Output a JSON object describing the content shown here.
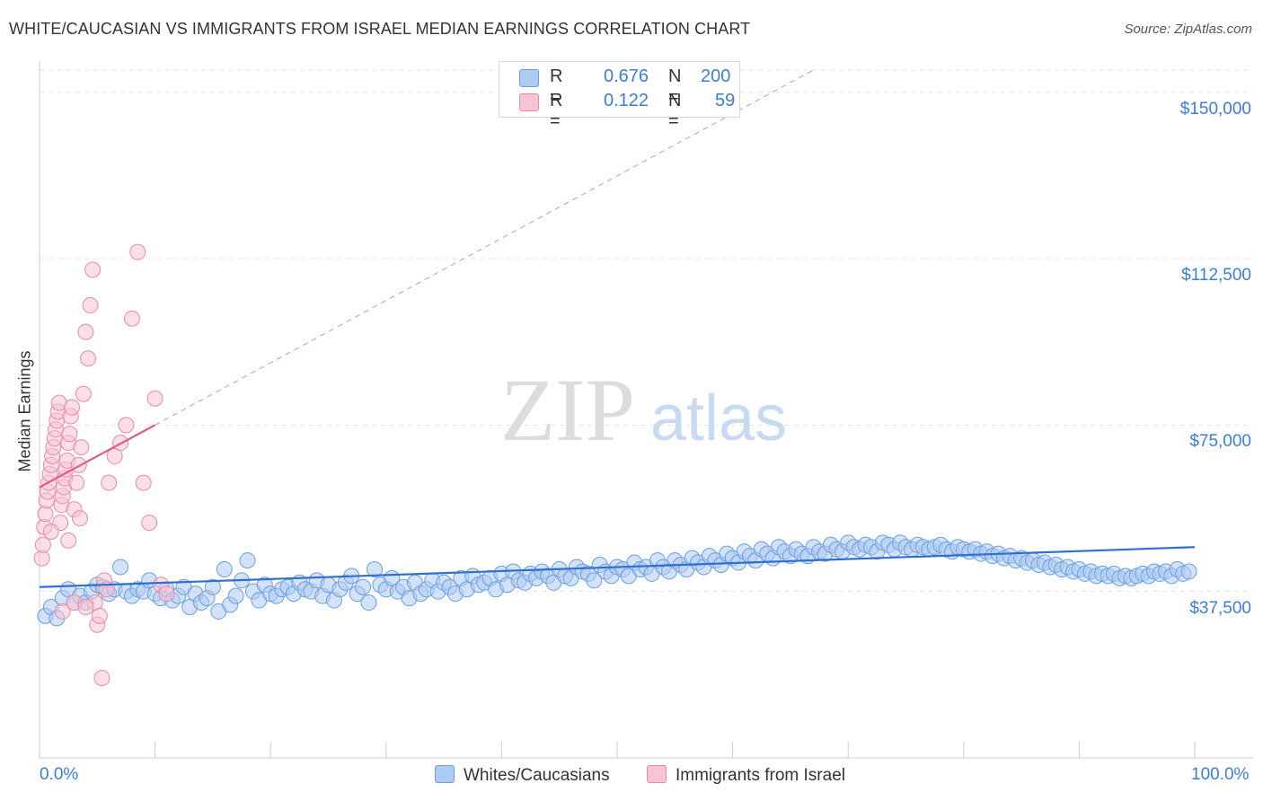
{
  "title": "WHITE/CAUCASIAN VS IMMIGRANTS FROM ISRAEL MEDIAN EARNINGS CORRELATION CHART",
  "source": "Source: ZipAtlas.com",
  "watermark": {
    "zip": "ZIP",
    "atlas": "atlas"
  },
  "legend": {
    "r_label": "R =",
    "n_label": "N =",
    "rows": [
      {
        "r": "0.676",
        "n": "200",
        "fill": "#aecbf2",
        "stroke": "#6a9fe0"
      },
      {
        "r": "0.122",
        "n": "59",
        "fill": "#f7c4d4",
        "stroke": "#e88aa8"
      }
    ]
  },
  "chart_data": {
    "type": "scatter",
    "title": "WHITE/CAUCASIAN VS IMMIGRANTS FROM ISRAEL MEDIAN EARNINGS CORRELATION CHART",
    "xlabel": "",
    "ylabel": "Median Earnings",
    "xlim": [
      0,
      100
    ],
    "ylim": [
      0,
      155000
    ],
    "x_tick_labels": [
      "0.0%",
      "100.0%"
    ],
    "y_tick_values": [
      37500,
      75000,
      112500,
      150000
    ],
    "y_tick_labels": [
      "$37,500",
      "$75,000",
      "$112,500",
      "$150,000"
    ],
    "grid": true,
    "legend_position": "bottom-center",
    "series": [
      {
        "name": "Whites/Caucasians",
        "color": "#6a9fe0",
        "fill": "#aecbf2",
        "R": 0.676,
        "N": 200,
        "trend": {
          "x": [
            0,
            100
          ],
          "y": [
            38500,
            47500
          ]
        },
        "points": [
          [
            0.5,
            32000
          ],
          [
            1,
            34000
          ],
          [
            1.5,
            31500
          ],
          [
            2,
            36000
          ],
          [
            2.5,
            38000
          ],
          [
            3,
            35000
          ],
          [
            3.5,
            36500
          ],
          [
            4,
            35000
          ],
          [
            4.5,
            37500
          ],
          [
            5,
            39000
          ],
          [
            5.5,
            38500
          ],
          [
            6,
            37000
          ],
          [
            6.5,
            38000
          ],
          [
            7,
            43000
          ],
          [
            7.5,
            37500
          ],
          [
            8,
            36500
          ],
          [
            8.5,
            38000
          ],
          [
            9,
            37500
          ],
          [
            9.5,
            40000
          ],
          [
            10,
            37000
          ],
          [
            10.5,
            36000
          ],
          [
            11,
            38000
          ],
          [
            11.5,
            35500
          ],
          [
            12,
            36500
          ],
          [
            12.5,
            38500
          ],
          [
            13,
            34000
          ],
          [
            13.5,
            37000
          ],
          [
            14,
            35000
          ],
          [
            14.5,
            36000
          ],
          [
            15,
            38500
          ],
          [
            15.5,
            33000
          ],
          [
            16,
            42500
          ],
          [
            16.5,
            34500
          ],
          [
            17,
            36500
          ],
          [
            17.5,
            40000
          ],
          [
            18,
            44500
          ],
          [
            18.5,
            37500
          ],
          [
            19,
            35500
          ],
          [
            19.5,
            39000
          ],
          [
            20,
            37000
          ],
          [
            20.5,
            36500
          ],
          [
            21,
            38000
          ],
          [
            21.5,
            38500
          ],
          [
            22,
            37000
          ],
          [
            22.5,
            39500
          ],
          [
            23,
            38000
          ],
          [
            23.5,
            37500
          ],
          [
            24,
            40000
          ],
          [
            24.5,
            36500
          ],
          [
            25,
            39000
          ],
          [
            25.5,
            35500
          ],
          [
            26,
            38000
          ],
          [
            26.5,
            39500
          ],
          [
            27,
            41000
          ],
          [
            27.5,
            37000
          ],
          [
            28,
            38500
          ],
          [
            28.5,
            35000
          ],
          [
            29,
            42500
          ],
          [
            29.5,
            39000
          ],
          [
            30,
            38000
          ],
          [
            30.5,
            40500
          ],
          [
            31,
            37500
          ],
          [
            31.5,
            38500
          ],
          [
            32,
            36000
          ],
          [
            32.5,
            39500
          ],
          [
            33,
            37000
          ],
          [
            33.5,
            38000
          ],
          [
            34,
            40000
          ],
          [
            34.5,
            37500
          ],
          [
            35,
            39500
          ],
          [
            35.5,
            38500
          ],
          [
            36,
            37000
          ],
          [
            36.5,
            40500
          ],
          [
            37,
            38000
          ],
          [
            37.5,
            41000
          ],
          [
            38,
            39000
          ],
          [
            38.5,
            39500
          ],
          [
            39,
            40500
          ],
          [
            39.5,
            38000
          ],
          [
            40,
            41500
          ],
          [
            40.5,
            39000
          ],
          [
            41,
            42000
          ],
          [
            41.5,
            40000
          ],
          [
            42,
            39500
          ],
          [
            42.5,
            41500
          ],
          [
            43,
            40500
          ],
          [
            43.5,
            42000
          ],
          [
            44,
            41000
          ],
          [
            44.5,
            39500
          ],
          [
            45,
            42500
          ],
          [
            45.5,
            41000
          ],
          [
            46,
            40500
          ],
          [
            46.5,
            43000
          ],
          [
            47,
            42000
          ],
          [
            47.5,
            41500
          ],
          [
            48,
            40000
          ],
          [
            48.5,
            43500
          ],
          [
            49,
            42000
          ],
          [
            49.5,
            41000
          ],
          [
            50,
            43000
          ],
          [
            50.5,
            42500
          ],
          [
            51,
            41000
          ],
          [
            51.5,
            44000
          ],
          [
            52,
            42500
          ],
          [
            52.5,
            43000
          ],
          [
            53,
            41500
          ],
          [
            53.5,
            44500
          ],
          [
            54,
            43000
          ],
          [
            54.5,
            42000
          ],
          [
            55,
            44500
          ],
          [
            55.5,
            43500
          ],
          [
            56,
            42500
          ],
          [
            56.5,
            45000
          ],
          [
            57,
            44000
          ],
          [
            57.5,
            43000
          ],
          [
            58,
            45500
          ],
          [
            58.5,
            44500
          ],
          [
            59,
            43500
          ],
          [
            59.5,
            46000
          ],
          [
            60,
            45000
          ],
          [
            60.5,
            44000
          ],
          [
            61,
            46500
          ],
          [
            61.5,
            45500
          ],
          [
            62,
            44500
          ],
          [
            62.5,
            47000
          ],
          [
            63,
            46000
          ],
          [
            63.5,
            45000
          ],
          [
            64,
            47500
          ],
          [
            64.5,
            46500
          ],
          [
            65,
            45500
          ],
          [
            65.5,
            47000
          ],
          [
            66,
            46000
          ],
          [
            66.5,
            45500
          ],
          [
            67,
            47500
          ],
          [
            67.5,
            46500
          ],
          [
            68,
            46000
          ],
          [
            68.5,
            48000
          ],
          [
            69,
            47000
          ],
          [
            69.5,
            46500
          ],
          [
            70,
            48500
          ],
          [
            70.5,
            47500
          ],
          [
            71,
            47000
          ],
          [
            71.5,
            48000
          ],
          [
            72,
            47500
          ],
          [
            72.5,
            46500
          ],
          [
            73,
            48500
          ],
          [
            73.5,
            48000
          ],
          [
            74,
            47000
          ],
          [
            74.5,
            48500
          ],
          [
            75,
            47500
          ],
          [
            75.5,
            47000
          ],
          [
            76,
            48000
          ],
          [
            76.5,
            47500
          ],
          [
            77,
            47000
          ],
          [
            77.5,
            47500
          ],
          [
            78,
            48000
          ],
          [
            78.5,
            47000
          ],
          [
            79,
            46500
          ],
          [
            79.5,
            47500
          ],
          [
            80,
            47000
          ],
          [
            80.5,
            46500
          ],
          [
            81,
            47000
          ],
          [
            81.5,
            46000
          ],
          [
            82,
            46500
          ],
          [
            82.5,
            45500
          ],
          [
            83,
            46000
          ],
          [
            83.5,
            45000
          ],
          [
            84,
            45500
          ],
          [
            84.5,
            44500
          ],
          [
            85,
            45000
          ],
          [
            85.5,
            44000
          ],
          [
            86,
            44500
          ],
          [
            86.5,
            43500
          ],
          [
            87,
            44000
          ],
          [
            87.5,
            43000
          ],
          [
            88,
            43500
          ],
          [
            88.5,
            42500
          ],
          [
            89,
            43000
          ],
          [
            89.5,
            42000
          ],
          [
            90,
            42500
          ],
          [
            90.5,
            41500
          ],
          [
            91,
            42000
          ],
          [
            91.5,
            41000
          ],
          [
            92,
            41500
          ],
          [
            92.5,
            41000
          ],
          [
            93,
            41500
          ],
          [
            93.5,
            40500
          ],
          [
            94,
            41000
          ],
          [
            94.5,
            40500
          ],
          [
            95,
            41000
          ],
          [
            95.5,
            41500
          ],
          [
            96,
            41000
          ],
          [
            96.5,
            42000
          ],
          [
            97,
            41500
          ],
          [
            97.5,
            42000
          ],
          [
            98,
            41000
          ],
          [
            98.5,
            42500
          ],
          [
            99,
            41500
          ],
          [
            99.5,
            42000
          ]
        ]
      },
      {
        "name": "Immigrants from Israel",
        "color": "#e88aa8",
        "fill": "#f7c4d4",
        "R": 0.122,
        "N": 59,
        "trend": {
          "x": [
            0,
            10
          ],
          "y": [
            61000,
            75000
          ]
        },
        "trend_extension": {
          "x": [
            10,
            67
          ],
          "y": [
            75000,
            155000
          ]
        },
        "points": [
          [
            0.2,
            45000
          ],
          [
            0.3,
            48000
          ],
          [
            0.4,
            52000
          ],
          [
            0.5,
            55000
          ],
          [
            0.6,
            58000
          ],
          [
            0.7,
            60000
          ],
          [
            0.8,
            62000
          ],
          [
            0.9,
            64000
          ],
          [
            1,
            66000
          ],
          [
            1.1,
            68000
          ],
          [
            1.2,
            70000
          ],
          [
            1.3,
            72000
          ],
          [
            1.4,
            74000
          ],
          [
            1.5,
            76000
          ],
          [
            1.6,
            78000
          ],
          [
            1.7,
            80000
          ],
          [
            1.8,
            53000
          ],
          [
            1.9,
            57000
          ],
          [
            2,
            59000
          ],
          [
            2.1,
            61000
          ],
          [
            2.2,
            63000
          ],
          [
            2.3,
            65000
          ],
          [
            2.4,
            67000
          ],
          [
            2.5,
            71000
          ],
          [
            2.6,
            73000
          ],
          [
            2.7,
            77000
          ],
          [
            2.8,
            79000
          ],
          [
            3,
            56000
          ],
          [
            3.2,
            62000
          ],
          [
            3.4,
            66000
          ],
          [
            3.6,
            70000
          ],
          [
            3.8,
            82000
          ],
          [
            4,
            96000
          ],
          [
            4.2,
            90000
          ],
          [
            4.4,
            102000
          ],
          [
            4.6,
            110000
          ],
          [
            4.8,
            35000
          ],
          [
            5,
            30000
          ],
          [
            5.2,
            32000
          ],
          [
            5.4,
            18000
          ],
          [
            5.6,
            40000
          ],
          [
            5.8,
            38000
          ],
          [
            6,
            62000
          ],
          [
            6.5,
            68000
          ],
          [
            7,
            71000
          ],
          [
            7.5,
            75000
          ],
          [
            8,
            99000
          ],
          [
            8.5,
            114000
          ],
          [
            9,
            62000
          ],
          [
            9.5,
            53000
          ],
          [
            10,
            81000
          ],
          [
            10.5,
            39000
          ],
          [
            11,
            37000
          ],
          [
            2,
            33000
          ],
          [
            3,
            35000
          ],
          [
            4,
            34000
          ],
          [
            1,
            51000
          ],
          [
            2.5,
            49000
          ],
          [
            3.5,
            54000
          ]
        ]
      }
    ]
  },
  "bottom_legend": [
    "Whites/Caucasians",
    "Immigrants from Israel"
  ]
}
